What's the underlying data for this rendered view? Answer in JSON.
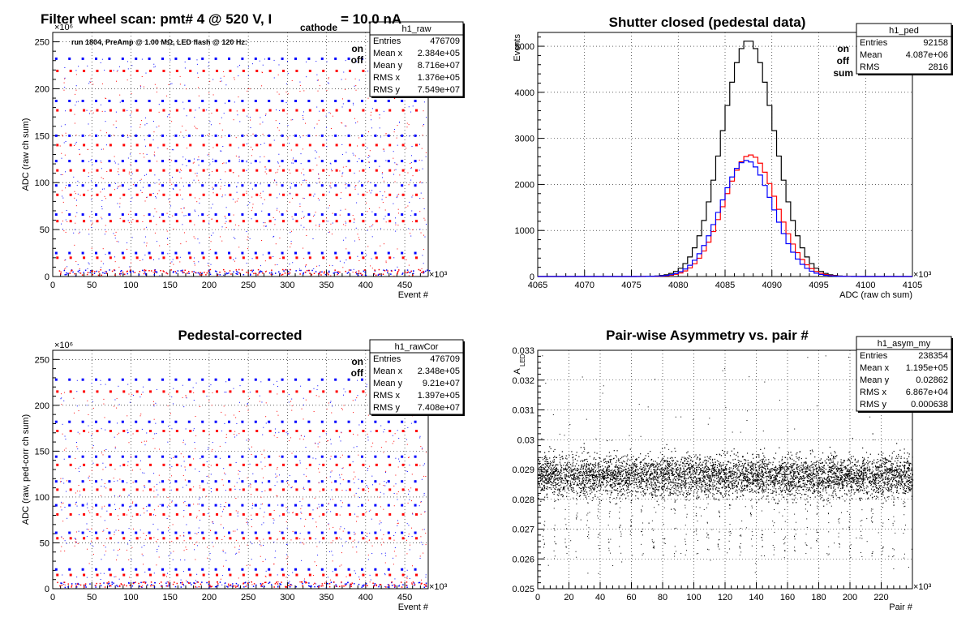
{
  "chart_data": [
    {
      "type": "scatter",
      "title_main": "Filter wheel scan: pmt#   4 @   520 V, I",
      "title_sub": "cathode",
      "title_end": "= 10.0 nA",
      "note": "run 1804, PreAmp @ 1.00 MΩ, LED flash @  120 Hz:",
      "xlabel": "Event #",
      "ylabel": "ADC (raw ch sum)",
      "xlim": [
        0,
        480000
      ],
      "ylim": [
        0,
        260000000
      ],
      "x_exp_label": "×10³",
      "y_exp_label": "×10⁶",
      "x_ticks": [
        "0",
        "50",
        "100",
        "150",
        "200",
        "250",
        "300",
        "350",
        "400",
        "450"
      ],
      "y_ticks": [
        "0",
        "50",
        "100",
        "150",
        "200",
        "250"
      ],
      "grid": true,
      "legend": [
        {
          "name": "on",
          "color": "#0000ff"
        },
        {
          "name": "off",
          "color": "#ff0000"
        }
      ],
      "stats": {
        "name": "h1_raw",
        "rows": [
          [
            "Entries",
            "476709"
          ],
          [
            "Mean x",
            "2.384e+05"
          ],
          [
            "Mean y",
            "8.716e+07"
          ],
          [
            "RMS x",
            "1.376e+05"
          ],
          [
            "RMS y",
            "7.549e+07"
          ]
        ]
      },
      "series": [
        {
          "name": "on",
          "levels": [
            232,
            187,
            150,
            123,
            97,
            66,
            25
          ]
        },
        {
          "name": "off",
          "levels": [
            219,
            177,
            140,
            113,
            87,
            59,
            20
          ]
        }
      ],
      "level_units": "1e6",
      "burst_period_events": 17000
    },
    {
      "type": "line",
      "title": "Shutter closed (pedestal data)",
      "xlabel": "ADC (raw ch sum)",
      "ylabel": "Events",
      "xlim": [
        4065000,
        4105000
      ],
      "ylim": [
        0,
        5300
      ],
      "x_exp_label": "×10³",
      "x_ticks": [
        "4065",
        "4070",
        "4075",
        "4080",
        "4085",
        "4090",
        "4095",
        "4100",
        "4105"
      ],
      "y_ticks": [
        "0",
        "1000",
        "2000",
        "3000",
        "4000",
        "5000"
      ],
      "grid": true,
      "legend": [
        {
          "name": "on",
          "color": "#0000ff"
        },
        {
          "name": "off",
          "color": "#ff0000"
        },
        {
          "name": "sum",
          "color": "#000000"
        }
      ],
      "stats": {
        "name": "h1_ped",
        "rows": [
          [
            "Entries",
            "92158"
          ],
          [
            "Mean",
            "4.087e+06"
          ],
          [
            "RMS",
            "2816"
          ]
        ]
      },
      "series": [
        {
          "name": "sum",
          "mean": 4087500,
          "sigma": 2800,
          "peak": 5130
        },
        {
          "name": "off",
          "mean": 4087700,
          "sigma": 2800,
          "peak": 2640
        },
        {
          "name": "on",
          "mean": 4087300,
          "sigma": 2800,
          "peak": 2520
        }
      ]
    },
    {
      "type": "scatter",
      "title": "Pedestal-corrected",
      "xlabel": "Event #",
      "ylabel": "ADC (raw, ped-corr ch sum)",
      "xlim": [
        0,
        480000
      ],
      "ylim": [
        0,
        260000000
      ],
      "x_exp_label": "×10³",
      "y_exp_label": "×10⁶",
      "x_ticks": [
        "0",
        "50",
        "100",
        "150",
        "200",
        "250",
        "300",
        "350",
        "400",
        "450"
      ],
      "y_ticks": [
        "0",
        "50",
        "100",
        "150",
        "200",
        "250"
      ],
      "grid": true,
      "legend": [
        {
          "name": "on",
          "color": "#0000ff"
        },
        {
          "name": "off",
          "color": "#ff0000"
        }
      ],
      "stats": {
        "name": "h1_rawCor",
        "rows": [
          [
            "Entries",
            "476709"
          ],
          [
            "Mean x",
            "2.348e+05"
          ],
          [
            "Mean y",
            "9.21e+07"
          ],
          [
            "RMS x",
            "1.397e+05"
          ],
          [
            "RMS y",
            "7.408e+07"
          ]
        ]
      },
      "series": [
        {
          "name": "on",
          "levels": [
            228,
            182,
            144,
            117,
            91,
            61,
            21
          ]
        },
        {
          "name": "off",
          "levels": [
            215,
            172,
            135,
            108,
            81,
            55,
            15
          ]
        }
      ],
      "level_units": "1e6",
      "burst_period_events": 17000
    },
    {
      "type": "scatter",
      "title": "Pair-wise Asymmetry vs. pair #",
      "xlabel": "Pair #",
      "ylabel": "A",
      "ylabel_sub": "LED",
      "xlim": [
        0,
        240000
      ],
      "ylim": [
        0.025,
        0.033
      ],
      "x_exp_label": "×10³",
      "x_ticks": [
        "0",
        "20",
        "40",
        "60",
        "80",
        "100",
        "120",
        "140",
        "160",
        "180",
        "200",
        "220"
      ],
      "y_ticks": [
        "0.025",
        "0.026",
        "0.027",
        "0.028",
        "0.029",
        "0.03",
        "0.031",
        "0.032",
        "0.033"
      ],
      "grid": true,
      "stats": {
        "name": "h1_asym_my",
        "rows": [
          [
            "Entries",
            "238354"
          ],
          [
            "Mean x",
            "1.195e+05"
          ],
          [
            "Mean y",
            "0.02862"
          ],
          [
            "RMS x",
            "6.867e+04"
          ],
          [
            "RMS y",
            "0.000638"
          ]
        ]
      },
      "band_center": 0.0288,
      "band_half_width": 0.0006,
      "color": "#000000"
    }
  ]
}
